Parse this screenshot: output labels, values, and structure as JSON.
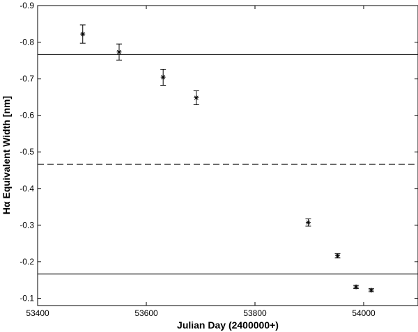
{
  "chart_data": {
    "type": "scatter",
    "xlabel": "Julian Day (2400000+)",
    "ylabel": "Hα Equivalent Width [nm]",
    "xlim": [
      53400,
      54100
    ],
    "ylim": [
      -0.08,
      -0.9
    ],
    "x_ticks": [
      53400,
      53600,
      53800,
      54000
    ],
    "x_tick_labels": [
      "53400",
      "53600",
      "53800",
      "54000"
    ],
    "y_ticks": [
      -0.9,
      -0.8,
      -0.7,
      -0.6,
      -0.5,
      -0.4,
      -0.3,
      -0.2,
      -0.1
    ],
    "y_tick_labels": [
      "-0.9",
      "-0.8",
      "-0.7",
      "-0.6",
      "-0.5",
      "-0.4",
      "-0.3",
      "-0.2",
      "-0.1"
    ],
    "grid": false,
    "series": [
      {
        "marker": "*",
        "x": [
          53483,
          53550,
          53631,
          53692,
          53898,
          53952,
          53986,
          54014
        ],
        "y": [
          -0.822,
          -0.773,
          -0.704,
          -0.648,
          -0.307,
          -0.216,
          -0.131,
          -0.122
        ],
        "err": [
          0.025,
          0.022,
          0.022,
          0.019,
          0.01,
          0.006,
          0.004,
          0.004
        ]
      }
    ],
    "hlines": [
      {
        "y": -0.766,
        "style": "solid"
      },
      {
        "y": -0.466,
        "style": "dashed"
      },
      {
        "y": -0.166,
        "style": "solid"
      }
    ],
    "colors": {
      "marks": "#000000",
      "axes": "#000000",
      "lines": "#000000"
    }
  }
}
